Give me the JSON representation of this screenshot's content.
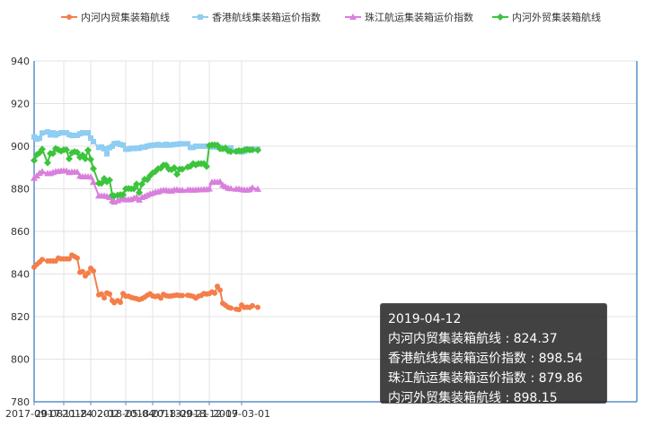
{
  "chart_data": {
    "type": "line",
    "title": "",
    "xlabel": "",
    "ylabel": "",
    "ylim": [
      780,
      940
    ],
    "yticks": [
      780,
      800,
      820,
      840,
      860,
      880,
      900,
      920,
      940
    ],
    "xtick_labels": [
      "2017-09-08",
      "2017-11-24",
      "2018-02-02",
      "2018-05-04",
      "2018-07-13",
      "2018-09-21",
      "2018-12-07",
      "2019-03-01"
    ],
    "legend_position": "top",
    "grid": true,
    "x": [
      "2017-09-08",
      "2017-09-15",
      "2017-09-22",
      "2017-09-29",
      "2017-10-13",
      "2017-10-20",
      "2017-10-27",
      "2017-11-03",
      "2017-11-10",
      "2017-11-17",
      "2017-11-24",
      "2017-12-01",
      "2017-12-08",
      "2017-12-15",
      "2017-12-22",
      "2017-12-29",
      "2018-01-05",
      "2018-01-12",
      "2018-01-19",
      "2018-01-26",
      "2018-02-02",
      "2018-02-09",
      "2018-02-23",
      "2018-03-02",
      "2018-03-09",
      "2018-03-16",
      "2018-03-23",
      "2018-03-30",
      "2018-04-04",
      "2018-04-13",
      "2018-04-20",
      "2018-04-27",
      "2018-05-04",
      "2018-05-11",
      "2018-05-18",
      "2018-05-25",
      "2018-06-01",
      "2018-06-08",
      "2018-06-15",
      "2018-06-22",
      "2018-06-29",
      "2018-07-06",
      "2018-07-13",
      "2018-07-20",
      "2018-07-27",
      "2018-08-03",
      "2018-08-10",
      "2018-08-17",
      "2018-08-24",
      "2018-08-31",
      "2018-09-07",
      "2018-09-14",
      "2018-09-21",
      "2018-09-28",
      "2018-10-12",
      "2018-10-19",
      "2018-10-26",
      "2018-11-02",
      "2018-11-09",
      "2018-11-16",
      "2018-11-23",
      "2018-11-30",
      "2018-12-07",
      "2018-12-14",
      "2018-12-21",
      "2018-12-28",
      "2019-01-04",
      "2019-01-11",
      "2019-01-18",
      "2019-01-25",
      "2019-02-01",
      "2019-02-15",
      "2019-02-22",
      "2019-03-01",
      "2019-03-08",
      "2019-03-15",
      "2019-03-22",
      "2019-03-29",
      "2019-04-12"
    ],
    "series": [
      {
        "name": "内河内贸集装箱航线",
        "color": "#f47e4a",
        "marker": "circle",
        "values": [
          843.2,
          844.5,
          845.6,
          846.8,
          846.1,
          846.1,
          846.1,
          846.1,
          847.5,
          847.1,
          847.1,
          847.1,
          847.1,
          848.9,
          848.2,
          847.5,
          840.8,
          841.1,
          839.1,
          840.4,
          842.7,
          841.4,
          830.2,
          830.6,
          828.8,
          831.1,
          830.6,
          827.5,
          826.5,
          827.5,
          826.7,
          830.8,
          829.6,
          829.6,
          829.0,
          828.7,
          828.4,
          828.0,
          828.4,
          829.1,
          830.0,
          830.7,
          829.7,
          829.4,
          829.7,
          828.7,
          830.4,
          829.8,
          829.6,
          829.7,
          829.9,
          830.1,
          829.9,
          829.9,
          830.0,
          829.8,
          829.5,
          828.7,
          829.6,
          829.9,
          830.8,
          830.6,
          830.8,
          831.6,
          831.0,
          834.2,
          832.4,
          826.2,
          825.3,
          824.4,
          824.0,
          823.5,
          823.3,
          825.4,
          824.3,
          824.4,
          824.3,
          825.1,
          824.37
        ]
      },
      {
        "name": "香港航线集装箱运价指数",
        "color": "#8fcdf3",
        "marker": "square",
        "values": [
          904.4,
          903.3,
          903.7,
          906.2,
          906.7,
          905.3,
          906.3,
          905.2,
          905.9,
          906.3,
          906.3,
          906.3,
          905.4,
          905.0,
          905.1,
          905.1,
          905.8,
          906.3,
          906.2,
          906.3,
          903.8,
          902.1,
          899.4,
          899.6,
          898.8,
          896.4,
          899.3,
          900.0,
          901.2,
          901.4,
          900.8,
          900.5,
          898.6,
          898.6,
          899.0,
          898.9,
          899.1,
          899.0,
          899.5,
          899.5,
          900.0,
          900.3,
          900.5,
          900.5,
          900.8,
          900.5,
          900.5,
          900.9,
          900.5,
          900.6,
          900.8,
          900.9,
          901.1,
          901.1,
          901.1,
          899.4,
          899.4,
          900.0,
          900.0,
          900.0,
          900.0,
          900.0,
          900.0,
          899.7,
          899.6,
          899.6,
          899.4,
          898.9,
          898.9,
          899.0,
          899.2,
          897.5,
          897.5,
          897.3,
          897.6,
          898.7,
          898.4,
          898.6,
          898.54
        ]
      },
      {
        "name": "珠江航运集装箱运价指数",
        "color": "#d97fdc",
        "marker": "triangle",
        "values": [
          885.0,
          886.1,
          887.3,
          888.1,
          887.2,
          887.2,
          887.7,
          888.1,
          888.2,
          888.4,
          888.4,
          888.4,
          887.7,
          887.9,
          887.9,
          887.9,
          886.0,
          885.7,
          885.7,
          885.7,
          885.6,
          883.1,
          876.7,
          876.7,
          876.7,
          876.5,
          876.0,
          874.4,
          873.8,
          874.4,
          875.0,
          875.6,
          874.9,
          874.9,
          875.0,
          875.6,
          876.1,
          874.8,
          876.0,
          876.4,
          877.0,
          877.6,
          878.0,
          878.4,
          878.6,
          879.1,
          879.3,
          879.3,
          879.0,
          879.0,
          879.5,
          879.6,
          879.3,
          879.3,
          879.5,
          879.5,
          879.4,
          879.5,
          879.6,
          879.6,
          879.7,
          879.7,
          880.0,
          883.1,
          883.2,
          883.1,
          883.3,
          881.7,
          881.0,
          880.3,
          880.1,
          879.9,
          879.9,
          879.7,
          879.5,
          879.4,
          879.7,
          880.5,
          879.86
        ]
      },
      {
        "name": "内河外贸集装箱航线",
        "color": "#3cc43c",
        "marker": "diamond",
        "values": [
          893.3,
          896.0,
          896.9,
          898.6,
          892.2,
          896.6,
          896.6,
          898.9,
          898.3,
          897.7,
          898.3,
          898.3,
          894.1,
          896.9,
          897.4,
          897.1,
          894.8,
          895.8,
          894.1,
          898.1,
          893.8,
          889.5,
          882.6,
          882.6,
          884.8,
          883.3,
          884.1,
          877.0,
          876.6,
          877.0,
          877.2,
          877.2,
          880.0,
          880.1,
          880.0,
          880.0,
          882.2,
          878.2,
          882.2,
          884.5,
          884.3,
          886.1,
          887.4,
          888.1,
          889.4,
          889.7,
          891.1,
          891.1,
          889.2,
          889.0,
          889.9,
          886.8,
          889.2,
          889.2,
          890.2,
          890.6,
          891.8,
          891.2,
          891.8,
          891.8,
          891.8,
          890.5,
          900.3,
          900.6,
          900.6,
          900.5,
          898.8,
          898.8,
          899.2,
          897.8,
          897.5,
          897.6,
          897.9,
          897.8,
          898.2,
          898.4,
          898.2,
          898.3,
          898.15
        ]
      }
    ],
    "tooltip": {
      "date": "2019-04-12",
      "lines": [
        "内河内贸集装箱航线 : 824.37",
        "香港航线集装箱运价指数 : 898.54",
        "珠江航运集装箱运价指数 : 879.86",
        "内河外贸集装箱航线 : 898.15"
      ]
    }
  }
}
